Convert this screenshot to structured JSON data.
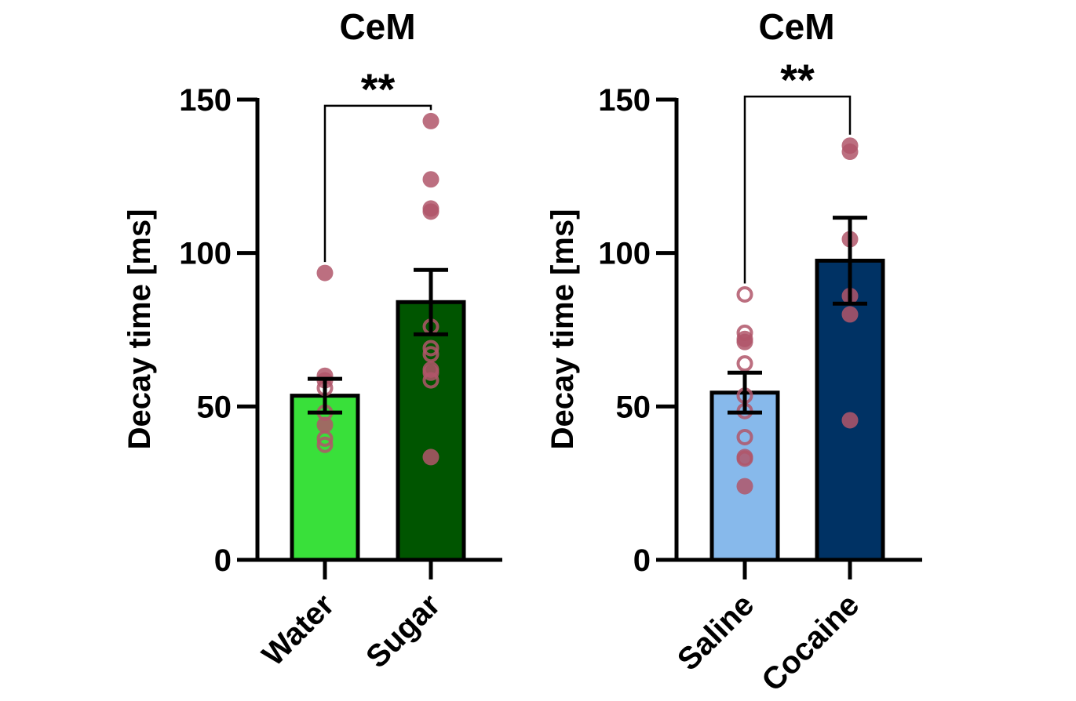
{
  "chart_data": [
    {
      "type": "bar",
      "title": "CeM",
      "ylabel": "Decay time [ms]",
      "xlabel": "",
      "ylim": [
        0,
        150
      ],
      "yticks": [
        0,
        50,
        100,
        150
      ],
      "ytick_labels": [
        "0",
        "50",
        "100",
        "150"
      ],
      "grid": false,
      "categories": [
        "Water",
        "Sugar"
      ],
      "values": [
        53.5,
        84
      ],
      "sem": [
        5.5,
        10.5
      ],
      "bar_colors": [
        "#39e03a",
        "#005500"
      ],
      "points": [
        [
          {
            "y": 93.5,
            "filled": true
          },
          {
            "y": 60,
            "filled": true
          },
          {
            "y": 58.5,
            "filled": true
          },
          {
            "y": 56,
            "filled": false
          },
          {
            "y": 48,
            "filled": false
          },
          {
            "y": 44,
            "filled": true
          },
          {
            "y": 39.5,
            "filled": false
          },
          {
            "y": 37.5,
            "filled": false
          }
        ],
        [
          {
            "y": 143,
            "filled": true
          },
          {
            "y": 124,
            "filled": true
          },
          {
            "y": 114.5,
            "filled": true
          },
          {
            "y": 113.5,
            "filled": true
          },
          {
            "y": 76,
            "filled": false
          },
          {
            "y": 69,
            "filled": false
          },
          {
            "y": 67,
            "filled": false
          },
          {
            "y": 62,
            "filled": false
          },
          {
            "y": 61,
            "filled": true
          },
          {
            "y": 58.5,
            "filled": false
          },
          {
            "y": 33.5,
            "filled": true
          }
        ]
      ],
      "point_color": "#b0566a",
      "significance": {
        "between": [
          0,
          1
        ],
        "label": "**",
        "y": 148
      }
    },
    {
      "type": "bar",
      "title": "CeM",
      "ylabel": "Decay time [ms]",
      "xlabel": "",
      "ylim": [
        0,
        150
      ],
      "yticks": [
        0,
        50,
        100,
        150
      ],
      "ytick_labels": [
        "0",
        "50",
        "100",
        "150"
      ],
      "grid": false,
      "categories": [
        "Saline",
        "Cocaine"
      ],
      "values": [
        54.5,
        97.5
      ],
      "sem": [
        6.5,
        14
      ],
      "bar_colors": [
        "#87b9eb",
        "#003264"
      ],
      "points": [
        [
          {
            "y": 86.5,
            "filled": false
          },
          {
            "y": 74,
            "filled": false
          },
          {
            "y": 72,
            "filled": true
          },
          {
            "y": 71,
            "filled": true
          },
          {
            "y": 64,
            "filled": false
          },
          {
            "y": 53.5,
            "filled": false
          },
          {
            "y": 48.5,
            "filled": false
          },
          {
            "y": 40,
            "filled": false
          },
          {
            "y": 33.5,
            "filled": true
          },
          {
            "y": 33,
            "filled": false
          },
          {
            "y": 24,
            "filled": true
          }
        ],
        [
          {
            "y": 135,
            "filled": true
          },
          {
            "y": 133,
            "filled": true
          },
          {
            "y": 104.5,
            "filled": true
          },
          {
            "y": 86,
            "filled": true
          },
          {
            "y": 80,
            "filled": true
          },
          {
            "y": 45.5,
            "filled": true
          }
        ]
      ],
      "point_color": "#b0566a",
      "significance": {
        "between": [
          0,
          1
        ],
        "label": "**",
        "y": 151
      }
    }
  ]
}
